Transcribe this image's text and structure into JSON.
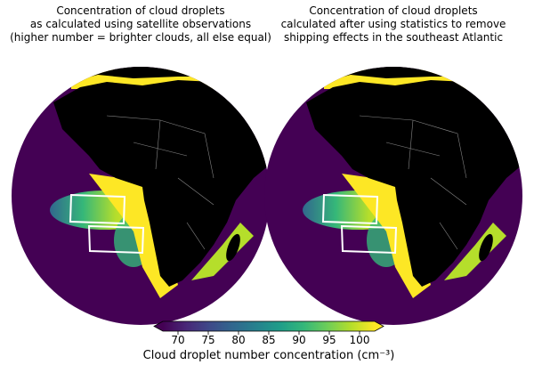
{
  "maps": [
    {
      "title": [
        "Concentration of cloud droplets",
        "as calculated using satellite observations",
        "(higher number = brighter clouds, all else equal)"
      ]
    },
    {
      "title": [
        "Concentration of cloud droplets",
        "calculated after using statistics to remove",
        "shipping effects in the southeast Atlantic"
      ]
    }
  ],
  "colorbar": {
    "label": "Cloud droplet number concentration (cm⁻³)",
    "lim": [
      67.5,
      102.5
    ],
    "ticks": [
      70,
      75,
      80,
      85,
      90,
      95,
      100
    ],
    "colors": [
      "#440154",
      "#482878",
      "#3e4a89",
      "#31688e",
      "#26828e",
      "#1f9e89",
      "#35b779",
      "#6ece58",
      "#b5de2b",
      "#fde725"
    ]
  }
}
